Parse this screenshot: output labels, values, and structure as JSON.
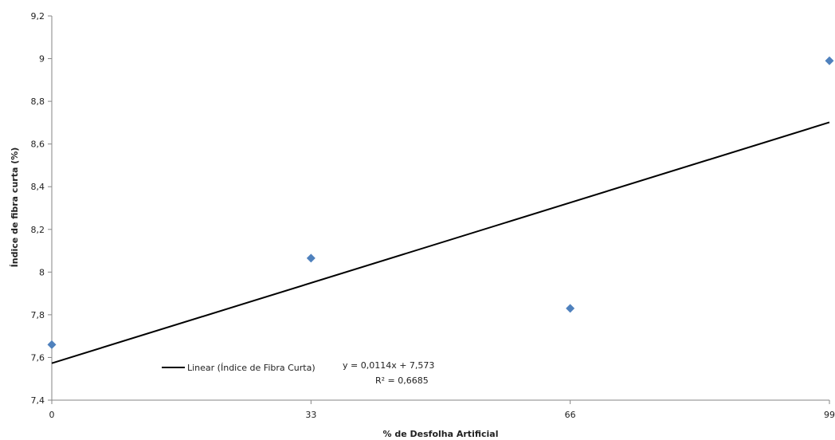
{
  "chart_data": {
    "type": "scatter",
    "xlabel": "% de Desfolha Artificial",
    "ylabel": "Índice de fibra curta (%)",
    "xticks": [
      "0",
      "33",
      "66",
      "99"
    ],
    "yticks": [
      "7,4",
      "7,6",
      "7,8",
      "8",
      "8,2",
      "8,4",
      "8,6",
      "8,8",
      "9",
      "9,2"
    ],
    "xlim": [
      0,
      99
    ],
    "ylim": [
      7.4,
      9.2
    ],
    "grid": false,
    "series": [
      {
        "marker": "diamond",
        "color": "#4f81bd",
        "x": [
          0,
          33,
          66,
          99
        ],
        "y": [
          7.66,
          8.065,
          7.83,
          8.99
        ]
      }
    ],
    "trendline": {
      "type": "linear",
      "label": "Linear (Índice de Fibra Curta)",
      "slope": 0.0114,
      "intercept": 7.573,
      "equation": "y = 0,0114x + 7,573",
      "r2": "R² = 0,6685",
      "color": "#000000"
    },
    "legend_position": "bottom-left"
  }
}
